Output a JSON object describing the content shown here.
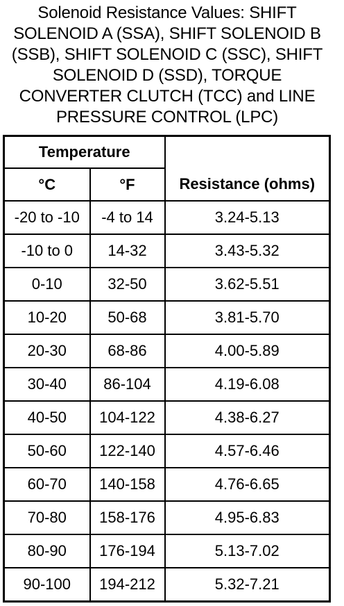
{
  "title": "Solenoid Resistance Values: SHIFT SOLENOID A (SSA), SHIFT SOLENOID B (SSB), SHIFT SOLENOID C (SSC), SHIFT SOLENOID D (SSD), TORQUE CONVERTER CLUTCH (TCC) and LINE PRESSURE CONTROL (LPC)",
  "headers": {
    "temperature": "Temperature",
    "celsius": "°C",
    "fahrenheit": "°F",
    "resistance": "Resistance (ohms)"
  },
  "rows": [
    {
      "c": "-20 to -10",
      "f": "-4 to 14",
      "r": "3.24-5.13"
    },
    {
      "c": "-10 to 0",
      "f": "14-32",
      "r": "3.43-5.32"
    },
    {
      "c": "0-10",
      "f": "32-50",
      "r": "3.62-5.51"
    },
    {
      "c": "10-20",
      "f": "50-68",
      "r": "3.81-5.70"
    },
    {
      "c": "20-30",
      "f": "68-86",
      "r": "4.00-5.89"
    },
    {
      "c": "30-40",
      "f": "86-104",
      "r": "4.19-6.08"
    },
    {
      "c": "40-50",
      "f": "104-122",
      "r": "4.38-6.27"
    },
    {
      "c": "50-60",
      "f": "122-140",
      "r": "4.57-6.46"
    },
    {
      "c": "60-70",
      "f": "140-158",
      "r": "4.76-6.65"
    },
    {
      "c": "70-80",
      "f": "158-176",
      "r": "4.95-6.83"
    },
    {
      "c": "80-90",
      "f": "176-194",
      "r": "5.13-7.02"
    },
    {
      "c": "90-100",
      "f": "194-212",
      "r": "5.32-7.21"
    }
  ]
}
